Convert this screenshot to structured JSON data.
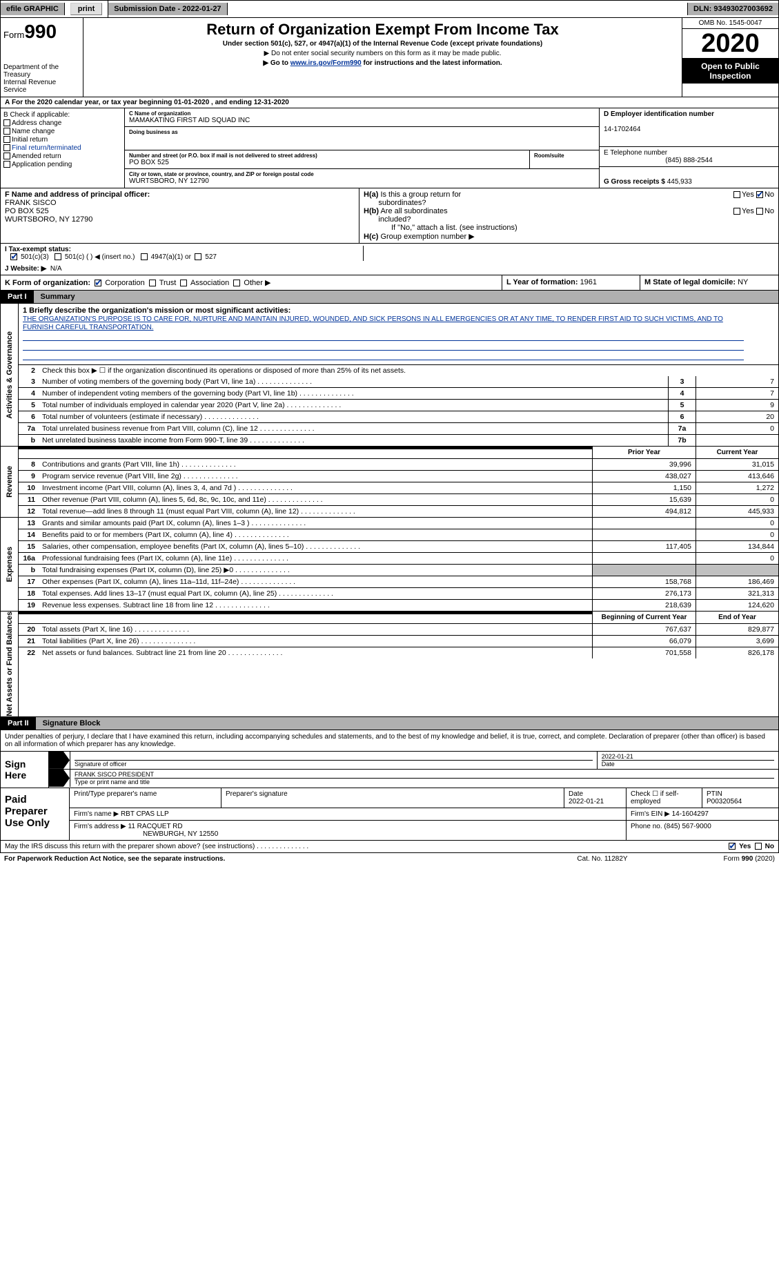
{
  "top": {
    "efile": "efile GRAPHIC",
    "print": "print",
    "sub_date_lbl": "Submission Date - ",
    "sub_date": "2022-01-27",
    "dln_lbl": "DLN: ",
    "dln": "93493027003692"
  },
  "header": {
    "form_prefix": "Form",
    "form_no": "990",
    "dept1": "Department of the Treasury",
    "dept2": "Internal Revenue Service",
    "title": "Return of Organization Exempt From Income Tax",
    "subtitle": "Under section 501(c), 527, or 4947(a)(1) of the Internal Revenue Code (except private foundations)",
    "note1": "▶ Do not enter social security numbers on this form as it may be made public.",
    "note2_a": "▶ Go to ",
    "note2_link": "www.irs.gov/Form990",
    "note2_b": " for instructions and the latest information.",
    "omb": "OMB No. 1545-0047",
    "year": "2020",
    "open": "Open to Public Inspection"
  },
  "period": {
    "a": "A",
    "text": "For the 2020 calendar year, or tax year beginning ",
    "begin": "01-01-2020",
    "mid": " , and ending ",
    "end": "12-31-2020"
  },
  "section_b": {
    "lbl": "B Check if applicable:",
    "addr": "Address change",
    "name": "Name change",
    "initial": "Initial return",
    "final": "Final return/terminated",
    "amended": "Amended return",
    "app": "Application pending"
  },
  "section_c": {
    "name_lbl": "C Name of organization",
    "name": "MAMAKATING FIRST AID SQUAD INC",
    "dba_lbl": "Doing business as",
    "street_lbl": "Number and street (or P.O. box if mail is not delivered to street address)",
    "room_lbl": "Room/suite",
    "street": "PO BOX 525",
    "city_lbl": "City or town, state or province, country, and ZIP or foreign postal code",
    "city": "WURTSBORO, NY  12790"
  },
  "section_d": {
    "lbl": "D Employer identification number",
    "val": "14-1702464"
  },
  "section_e": {
    "lbl": "E Telephone number",
    "val": "(845) 888-2544"
  },
  "section_g": {
    "lbl": "G Gross receipts $ ",
    "val": "445,933"
  },
  "section_f": {
    "lbl": "F  Name and address of principal officer:",
    "name": "FRANK SISCO",
    "addr1": "PO BOX 525",
    "addr2": "WURTSBORO, NY  12790"
  },
  "section_h": {
    "ha": "H(a)  Is this a group return for subordinates?",
    "hb": "H(b)  Are all subordinates included?",
    "hb_note": "If \"No,\" attach a list. (see instructions)",
    "hc": "H(c)  Group exemption number ▶",
    "yes": "Yes",
    "no": "No"
  },
  "section_i": {
    "lbl": "I  Tax-exempt status:",
    "o1": "501(c)(3)",
    "o2": "501(c) (  ) ◀ (insert no.)",
    "o3": "4947(a)(1) or",
    "o4": "527"
  },
  "section_j": {
    "lbl": "J  Website: ▶",
    "val": "N/A"
  },
  "section_k": {
    "lbl": "K Form of organization:",
    "corp": "Corporation",
    "trust": "Trust",
    "assoc": "Association",
    "other": "Other ▶"
  },
  "section_l": {
    "lbl": "L Year of formation: ",
    "val": "1961"
  },
  "section_m": {
    "lbl": "M State of legal domicile: ",
    "val": "NY"
  },
  "part1": {
    "hdr": "Part I",
    "title": "Summary",
    "gov_lbl": "Activities & Governance",
    "rev_lbl": "Revenue",
    "exp_lbl": "Expenses",
    "net_lbl": "Net Assets or Fund Balances",
    "line1_lbl": "1  Briefly describe the organization's mission or most significant activities:",
    "line1_txt": "THE ORGANIZATION'S PURPOSE IS TO CARE FOR, NURTURE AND MAINTAIN INJURED, WOUNDED, AND SICK PERSONS IN ALL EMERGENCIES OR AT ANY TIME, TO RENDER FIRST AID TO SUCH VICTIMS, AND TO FURNISH CAREFUL TRANSPORTATION.",
    "line2": "Check this box ▶ ☐ if the organization discontinued its operations or disposed of more than 25% of its net assets.",
    "prior_year": "Prior Year",
    "current_year": "Current Year",
    "begin_year": "Beginning of Current Year",
    "end_year": "End of Year",
    "rows_gov": [
      {
        "n": "3",
        "d": "Number of voting members of the governing body (Part VI, line 1a)",
        "box": "3",
        "v": "7"
      },
      {
        "n": "4",
        "d": "Number of independent voting members of the governing body (Part VI, line 1b)",
        "box": "4",
        "v": "7"
      },
      {
        "n": "5",
        "d": "Total number of individuals employed in calendar year 2020 (Part V, line 2a)",
        "box": "5",
        "v": "9"
      },
      {
        "n": "6",
        "d": "Total number of volunteers (estimate if necessary)",
        "box": "6",
        "v": "20"
      },
      {
        "n": "7a",
        "d": "Total unrelated business revenue from Part VIII, column (C), line 12",
        "box": "7a",
        "v": "0"
      },
      {
        "n": "b",
        "d": "Net unrelated business taxable income from Form 990-T, line 39",
        "box": "7b",
        "v": ""
      }
    ],
    "rows_rev": [
      {
        "n": "8",
        "d": "Contributions and grants (Part VIII, line 1h)",
        "py": "39,996",
        "cy": "31,015"
      },
      {
        "n": "9",
        "d": "Program service revenue (Part VIII, line 2g)",
        "py": "438,027",
        "cy": "413,646"
      },
      {
        "n": "10",
        "d": "Investment income (Part VIII, column (A), lines 3, 4, and 7d )",
        "py": "1,150",
        "cy": "1,272"
      },
      {
        "n": "11",
        "d": "Other revenue (Part VIII, column (A), lines 5, 6d, 8c, 9c, 10c, and 11e)",
        "py": "15,639",
        "cy": "0"
      },
      {
        "n": "12",
        "d": "Total revenue—add lines 8 through 11 (must equal Part VIII, column (A), line 12)",
        "py": "494,812",
        "cy": "445,933"
      }
    ],
    "rows_exp": [
      {
        "n": "13",
        "d": "Grants and similar amounts paid (Part IX, column (A), lines 1–3 )",
        "py": "",
        "cy": "0"
      },
      {
        "n": "14",
        "d": "Benefits paid to or for members (Part IX, column (A), line 4)",
        "py": "",
        "cy": "0"
      },
      {
        "n": "15",
        "d": "Salaries, other compensation, employee benefits (Part IX, column (A), lines 5–10)",
        "py": "117,405",
        "cy": "134,844"
      },
      {
        "n": "16a",
        "d": "Professional fundraising fees (Part IX, column (A), line 11e)",
        "py": "",
        "cy": "0"
      },
      {
        "n": "b",
        "d": "Total fundraising expenses (Part IX, column (D), line 25) ▶0",
        "py": "SHADE",
        "cy": "SHADE"
      },
      {
        "n": "17",
        "d": "Other expenses (Part IX, column (A), lines 11a–11d, 11f–24e)",
        "py": "158,768",
        "cy": "186,469"
      },
      {
        "n": "18",
        "d": "Total expenses. Add lines 13–17 (must equal Part IX, column (A), line 25)",
        "py": "276,173",
        "cy": "321,313"
      },
      {
        "n": "19",
        "d": "Revenue less expenses. Subtract line 18 from line 12",
        "py": "218,639",
        "cy": "124,620"
      }
    ],
    "rows_net": [
      {
        "n": "20",
        "d": "Total assets (Part X, line 16)",
        "py": "767,637",
        "cy": "829,877"
      },
      {
        "n": "21",
        "d": "Total liabilities (Part X, line 26)",
        "py": "66,079",
        "cy": "3,699"
      },
      {
        "n": "22",
        "d": "Net assets or fund balances. Subtract line 21 from line 20",
        "py": "701,558",
        "cy": "826,178"
      }
    ]
  },
  "part2": {
    "hdr": "Part II",
    "title": "Signature Block",
    "decl": "Under penalties of perjury, I declare that I have examined this return, including accompanying schedules and statements, and to the best of my knowledge and belief, it is true, correct, and complete. Declaration of preparer (other than officer) is based on all information of which preparer has any knowledge."
  },
  "sign": {
    "here": "Sign Here",
    "sig_officer": "Signature of officer",
    "date": "Date",
    "date_val": "2022-01-21",
    "name_title": "FRANK SISCO PRESIDENT",
    "type_name": "Type or print name and title"
  },
  "prep": {
    "lbl": "Paid Preparer Use Only",
    "h1": "Print/Type preparer's name",
    "h2": "Preparer's signature",
    "h3": "Date",
    "h3v": "2022-01-21",
    "h4": "Check ☐ if self-employed",
    "h5": "PTIN",
    "h5v": "P00320564",
    "firm_lbl": "Firm's name   ▶ ",
    "firm": "RBT CPAS LLP",
    "ein_lbl": "Firm's EIN ▶ ",
    "ein": "14-1604297",
    "addr_lbl": "Firm's address ▶ ",
    "addr1": "11 RACQUET RD",
    "addr2": "NEWBURGH, NY  12550",
    "phone_lbl": "Phone no. ",
    "phone": "(845) 567-9000"
  },
  "footer": {
    "q": "May the IRS discuss this return with the preparer shown above? (see instructions)",
    "yes": "Yes",
    "no": "No",
    "pra": "For Paperwork Reduction Act Notice, see the separate instructions.",
    "cat": "Cat. No. 11282Y",
    "form": "Form 990 (2020)"
  }
}
